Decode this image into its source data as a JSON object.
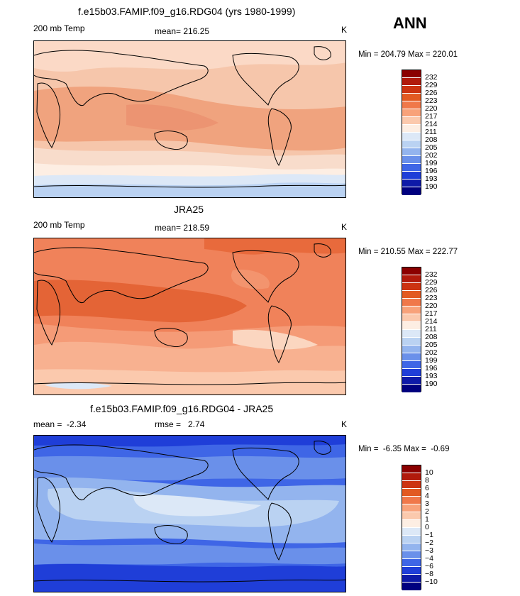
{
  "season": "ANN",
  "panels": [
    {
      "title": "f.e15b03.FAMIP.f09_g16.RDG04 (yrs 1980-1999)",
      "variable": "200 mb Temp",
      "stat_text": "mean= 216.25",
      "units": "K",
      "minmax": "Min = 204.79 Max = 220.01",
      "colorbar": [
        "232",
        "229",
        "226",
        "223",
        "220",
        "217",
        "214",
        "211",
        "208",
        "205",
        "202",
        "199",
        "196",
        "193",
        "190"
      ]
    },
    {
      "title": "JRA25",
      "variable": "200 mb Temp",
      "stat_text": "mean= 218.59",
      "units": "K",
      "minmax": "Min = 210.55 Max = 222.77",
      "colorbar": [
        "232",
        "229",
        "226",
        "223",
        "220",
        "217",
        "214",
        "211",
        "208",
        "205",
        "202",
        "199",
        "196",
        "193",
        "190"
      ]
    },
    {
      "title": "f.e15b03.FAMIP.f09_g16.RDG04 - JRA25",
      "stat_left": "mean =  -2.34",
      "stat_text": "rmse =   2.74",
      "units": "K",
      "minmax": "Min =  -6.35 Max =  -0.69",
      "colorbar": [
        "10",
        "8",
        "6",
        "4",
        "3",
        "2",
        "1",
        "0",
        "−1",
        "−2",
        "−3",
        "−4",
        "−6",
        "−8",
        "−10"
      ]
    }
  ],
  "colors": {
    "scale": [
      "#8b0000",
      "#b11a0c",
      "#cc3311",
      "#e25a22",
      "#f0784a",
      "#f8a27a",
      "#fbc9ad",
      "#fdeee3",
      "#dce8f7",
      "#bad2f2",
      "#93b4ee",
      "#6a90ea",
      "#3f66e6",
      "#1f3ed8",
      "#0e1aa8",
      "#00007f"
    ],
    "sea": "#f6c6ab"
  }
}
